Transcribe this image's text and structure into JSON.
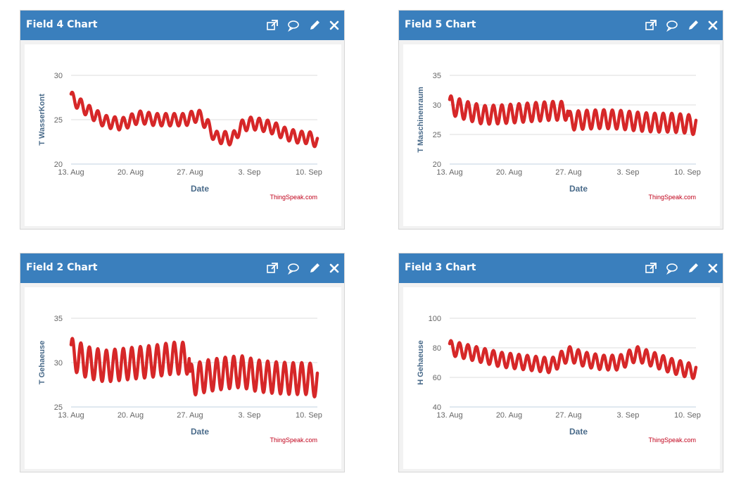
{
  "icons": [
    "external-link-icon",
    "comment-icon",
    "pencil-icon",
    "close-icon"
  ],
  "colors": {
    "header": "#3a7fbd",
    "series": "#d62728",
    "credit": "#c0001a",
    "axis_title": "#4a6b8a"
  },
  "charts": [
    {
      "title": "Field 4 Chart",
      "credit": "ThingSpeak.com",
      "chart_data": {
        "type": "line",
        "xlabel": "Date",
        "ylabel": "T WasserKont",
        "x_ticks": [
          "13. Aug",
          "20. Aug",
          "27. Aug",
          "3. Sep",
          "10. Sep"
        ],
        "y_ticks": [
          20,
          25,
          30
        ],
        "ylim": [
          20,
          30
        ],
        "x_range_days": [
          0,
          29
        ],
        "series": [
          {
            "x": [
              0,
              2,
              4,
              6,
              8,
              10,
              12,
              13.5,
              14,
              15,
              16,
              17,
              18,
              19,
              20,
              21,
              22,
              23,
              24,
              25,
              26,
              27,
              28,
              29
            ],
            "y": [
              27.5,
              26,
              24.8,
              24.5,
              25.3,
              25,
              25,
              25,
              25.2,
              25.5,
              24.5,
              23,
              23,
              22.8,
              24.2,
              24.6,
              24.5,
              24.3,
              24,
              23.5,
              23.2,
              23,
              23,
              22.5
            ],
            "amplitude": 0.7
          }
        ]
      }
    },
    {
      "title": "Field 5 Chart",
      "credit": "ThingSpeak.com",
      "chart_data": {
        "type": "line",
        "xlabel": "Date",
        "ylabel": "T Maschinenraum",
        "x_ticks": [
          "13. Aug",
          "20. Aug",
          "27. Aug",
          "3. Sep",
          "10. Sep"
        ],
        "y_ticks": [
          20,
          25,
          30,
          35
        ],
        "ylim": [
          20,
          35
        ],
        "x_range_days": [
          0,
          29
        ],
        "series": [
          {
            "x": [
              0,
              2,
              4,
              6,
              8,
              10,
              12,
              13.9,
              14,
              16,
              18,
              20,
              22,
              24,
              26,
              28,
              29
            ],
            "y": [
              30,
              29,
              28.3,
              28.4,
              28.6,
              28.8,
              29,
              29,
              27.3,
              27.5,
              27.6,
              27.5,
              27.2,
              27,
              27,
              26.8,
              26.5
            ],
            "amplitude": 1.6
          }
        ]
      }
    },
    {
      "title": "Field 2 Chart",
      "credit": "ThingSpeak.com",
      "chart_data": {
        "type": "line",
        "xlabel": "Date",
        "ylabel": "T Gehaeuse",
        "x_ticks": [
          "13. Aug",
          "20. Aug",
          "27. Aug",
          "3. Sep",
          "10. Sep"
        ],
        "y_ticks": [
          25,
          30,
          35
        ],
        "ylim": [
          25,
          35
        ],
        "x_range_days": [
          0,
          29
        ],
        "series": [
          {
            "x": [
              0,
              2,
              4,
              6,
              8,
              10,
              12,
              13.9,
              14,
              16,
              18,
              20,
              22,
              24,
              26,
              28,
              29
            ],
            "y": [
              31,
              30,
              29.6,
              29.8,
              30,
              30.2,
              30.5,
              30.5,
              28,
              28.5,
              28.8,
              29,
              28.5,
              28.3,
              28.2,
              28.2,
              27.8
            ],
            "amplitude": 1.8
          }
        ]
      }
    },
    {
      "title": "Field 3 Chart",
      "credit": "ThingSpeak.com",
      "chart_data": {
        "type": "line",
        "xlabel": "Date",
        "ylabel": "H Gehaeuse",
        "x_ticks": [
          "13. Aug",
          "20. Aug",
          "27. Aug",
          "3. Sep",
          "10. Sep"
        ],
        "y_ticks": [
          40,
          60,
          80,
          100
        ],
        "ylim": [
          40,
          100
        ],
        "x_range_days": [
          0,
          29
        ],
        "series": [
          {
            "x": [
              0,
              3,
              6,
              9,
              12,
              14,
              16,
              18,
              20,
              22,
              24,
              26,
              28,
              29
            ],
            "y": [
              80,
              76,
              72,
              70,
              68,
              76,
              72,
              70,
              70,
              76,
              72,
              68,
              65,
              64
            ],
            "amplitude": 5
          }
        ]
      }
    }
  ]
}
